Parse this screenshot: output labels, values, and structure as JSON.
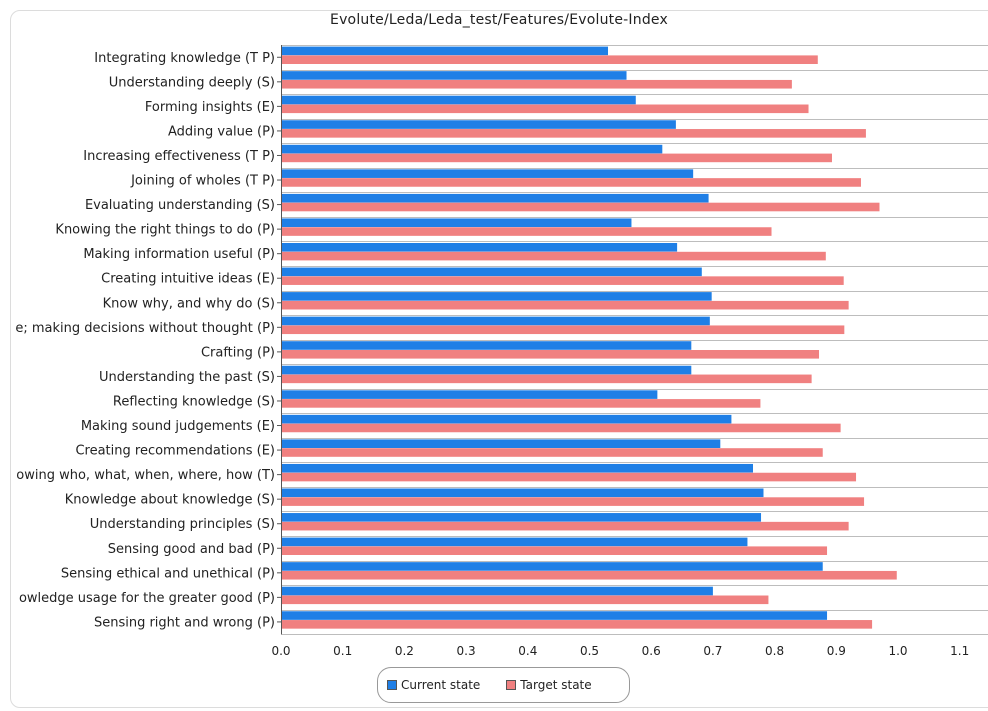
{
  "colors": {
    "current": "#1f7fe6",
    "target": "#f08080"
  },
  "chart_data": {
    "type": "bar",
    "orientation": "horizontal",
    "title": "Evolute/Leda/Leda_test/Features/Evolute-Index",
    "categories": [
      "Integrating knowledge (T P)",
      "Understanding deeply (S)",
      "Forming insights (E)",
      "Adding value (P)",
      "Increasing effectiveness (T P)",
      "Joining of wholes (T P)",
      "Evaluating understanding (S)",
      "Knowing the right things to do (P)",
      "Making information useful (P)",
      "Creating intuitive ideas (E)",
      "Know why, and why do (S)",
      "e; making decisions without thought (P)",
      "Crafting (P)",
      "Understanding the past (S)",
      "Reflecting knowledge (S)",
      "Making sound judgements (E)",
      "Creating recommendations (E)",
      "owing who, what, when, where, how (T)",
      "Knowledge about knowledge (S)",
      "Understanding principles (S)",
      "Sensing good and bad (P)",
      "Sensing ethical and unethical (P)",
      "owledge usage for the greater good (P)",
      "Sensing right and wrong (P)"
    ],
    "series": [
      {
        "name": "Current state",
        "values": [
          0.53,
          0.56,
          0.575,
          0.64,
          0.618,
          0.668,
          0.693,
          0.568,
          0.642,
          0.682,
          0.698,
          0.695,
          0.665,
          0.665,
          0.61,
          0.73,
          0.712,
          0.765,
          0.782,
          0.778,
          0.756,
          0.878,
          0.7,
          0.885
        ]
      },
      {
        "name": "Target state",
        "values": [
          0.87,
          0.828,
          0.855,
          0.948,
          0.893,
          0.94,
          0.97,
          0.795,
          0.883,
          0.912,
          0.92,
          0.913,
          0.872,
          0.86,
          0.777,
          0.907,
          0.878,
          0.932,
          0.945,
          0.92,
          0.885,
          0.998,
          0.79,
          0.958
        ]
      }
    ],
    "xlim": [
      0.0,
      1.1
    ],
    "xticks": [
      "0.0",
      "0.1",
      "0.2",
      "0.3",
      "0.4",
      "0.5",
      "0.6",
      "0.7",
      "0.8",
      "0.9",
      "1.0",
      "1.1"
    ],
    "xlabel": "",
    "ylabel": "",
    "grid": true,
    "legend_position": "bottom-center"
  }
}
